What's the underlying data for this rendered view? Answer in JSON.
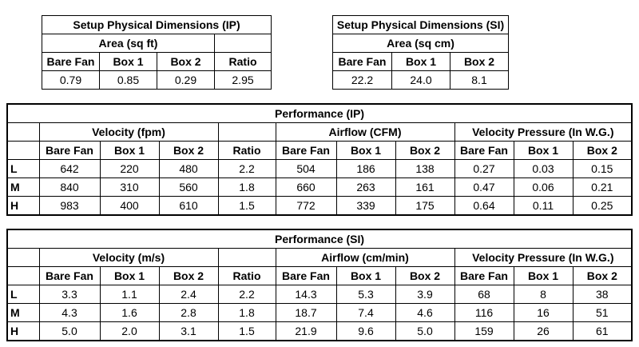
{
  "dims_ip": {
    "title": "Setup Physical Dimensions (IP)",
    "group": "Area (sq ft)",
    "headers": [
      "Bare Fan",
      "Box 1",
      "Box 2",
      "Ratio"
    ],
    "values": [
      "0.79",
      "0.85",
      "0.29",
      "2.95"
    ]
  },
  "dims_si": {
    "title": "Setup Physical Dimensions (SI)",
    "group": "Area (sq cm)",
    "headers": [
      "Bare Fan",
      "Box 1",
      "Box 2"
    ],
    "values": [
      "22.2",
      "24.0",
      "8.1"
    ]
  },
  "perf_ip": {
    "title": "Performance (IP)",
    "groups": [
      "Velocity (fpm)",
      "Airflow (CFM)",
      "Velocity Pressure (In W.G.)"
    ],
    "headers": [
      "Bare Fan",
      "Box 1",
      "Box 2",
      "Ratio",
      "Bare Fan",
      "Box 1",
      "Box 2",
      "Bare Fan",
      "Box 1",
      "Box 2"
    ],
    "rows": [
      {
        "label": "L",
        "cells": [
          "642",
          "220",
          "480",
          "2.2",
          "504",
          "186",
          "138",
          "0.27",
          "0.03",
          "0.15"
        ]
      },
      {
        "label": "M",
        "cells": [
          "840",
          "310",
          "560",
          "1.8",
          "660",
          "263",
          "161",
          "0.47",
          "0.06",
          "0.21"
        ]
      },
      {
        "label": "H",
        "cells": [
          "983",
          "400",
          "610",
          "1.5",
          "772",
          "339",
          "175",
          "0.64",
          "0.11",
          "0.25"
        ]
      }
    ]
  },
  "perf_si": {
    "title": "Performance (SI)",
    "groups": [
      "Velocity (m/s)",
      "Airflow (cm/min)",
      "Velocity Pressure (In W.G.)"
    ],
    "headers": [
      "Bare Fan",
      "Box 1",
      "Box 2",
      "Ratio",
      "Bare Fan",
      "Box 1",
      "Box 2",
      "Bare Fan",
      "Box 1",
      "Box 2"
    ],
    "rows": [
      {
        "label": "L",
        "cells": [
          "3.3",
          "1.1",
          "2.4",
          "2.2",
          "14.3",
          "5.3",
          "3.9",
          "68",
          "8",
          "38"
        ]
      },
      {
        "label": "M",
        "cells": [
          "4.3",
          "1.6",
          "2.8",
          "1.8",
          "18.7",
          "7.4",
          "4.6",
          "116",
          "16",
          "51"
        ]
      },
      {
        "label": "H",
        "cells": [
          "5.0",
          "2.0",
          "3.1",
          "1.5",
          "21.9",
          "9.6",
          "5.0",
          "159",
          "26",
          "61"
        ]
      }
    ]
  }
}
